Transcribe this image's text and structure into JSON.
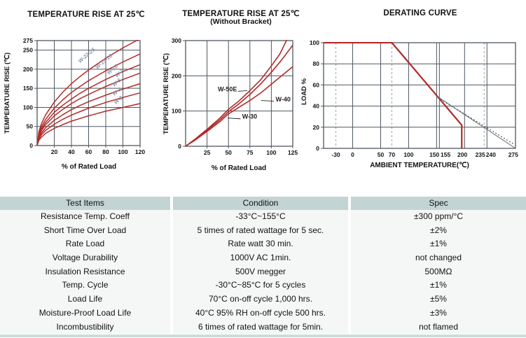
{
  "colors": {
    "curve_red": "#b22a2a",
    "grid": "#4e585f",
    "grid_dashed": "#9aa3ab",
    "derate_gray": "#5c666e",
    "derate_dotted": "#4a545c",
    "curve_label_blue": "#8393aa",
    "axis_text": "#111111",
    "table_header_bg": "#c3d4d4",
    "table_body_bg": "#f5f7f7",
    "bottom_bar": "#ccdcdc"
  },
  "chart_data": [
    {
      "type": "line",
      "title": "TEMPERATURE RISE AT 25℃",
      "subtitle": "",
      "ylabel": "TEMPERATURE RISE (℃)",
      "xlabel": "% of Rated Load",
      "xlim": [
        0,
        120
      ],
      "ylim": [
        0,
        275
      ],
      "xticks": [
        20,
        40,
        60,
        80,
        100,
        120
      ],
      "yticks": [
        0,
        50,
        100,
        150,
        200,
        250,
        275
      ],
      "series": [
        {
          "name": "W-22-25",
          "color": "curve_red",
          "width": 1.5,
          "points": [
            [
              0,
              0
            ],
            [
              2,
              36
            ],
            [
              5,
              57
            ],
            [
              10,
              81
            ],
            [
              20,
              114
            ],
            [
              30,
              140
            ],
            [
              40,
              162
            ],
            [
              50,
              181
            ],
            [
              60,
              198
            ],
            [
              80,
              229
            ],
            [
              100,
              256
            ],
            [
              120,
              280
            ]
          ],
          "label": {
            "x": 59,
            "y": 233,
            "rotate": -40
          }
        },
        {
          "name": "W-15-16",
          "color": "curve_red",
          "width": 1.5,
          "points": [
            [
              0,
              0
            ],
            [
              2,
              31
            ],
            [
              5,
              49
            ],
            [
              10,
              69
            ],
            [
              20,
              98
            ],
            [
              30,
              120
            ],
            [
              40,
              139
            ],
            [
              50,
              155
            ],
            [
              60,
              170
            ],
            [
              80,
              196
            ],
            [
              100,
              219
            ],
            [
              120,
              240
            ]
          ],
          "label": {
            "x": 79,
            "y": 217,
            "rotate": -40
          }
        },
        {
          "name": "W-10",
          "color": "curve_red",
          "width": 1.5,
          "points": [
            [
              0,
              0
            ],
            [
              2,
              27
            ],
            [
              5,
              43
            ],
            [
              10,
              61
            ],
            [
              20,
              87
            ],
            [
              30,
              106
            ],
            [
              40,
              122
            ],
            [
              50,
              137
            ],
            [
              60,
              150
            ],
            [
              80,
              173
            ],
            [
              100,
              194
            ],
            [
              120,
              212
            ]
          ],
          "label": {
            "x": 89,
            "y": 196,
            "rotate": -40
          }
        },
        {
          "name": "W-7",
          "color": "curve_red",
          "width": 1.5,
          "points": [
            [
              0,
              0
            ],
            [
              2,
              25
            ],
            [
              5,
              39
            ],
            [
              10,
              55
            ],
            [
              20,
              78
            ],
            [
              30,
              95
            ],
            [
              40,
              110
            ],
            [
              50,
              123
            ],
            [
              60,
              134
            ],
            [
              80,
              155
            ],
            [
              100,
              173
            ],
            [
              120,
              190
            ]
          ],
          "label": {
            "x": 97,
            "y": 186,
            "rotate": -40
          }
        },
        {
          "name": "W-5",
          "color": "curve_red",
          "width": 1.5,
          "points": [
            [
              0,
              0
            ],
            [
              2,
              21
            ],
            [
              5,
              33
            ],
            [
              10,
              47
            ],
            [
              20,
              66
            ],
            [
              30,
              81
            ],
            [
              40,
              94
            ],
            [
              50,
              105
            ],
            [
              60,
              115
            ],
            [
              80,
              132
            ],
            [
              100,
              148
            ],
            [
              120,
              162
            ]
          ],
          "label": {
            "x": 94,
            "y": 162,
            "rotate": -40
          }
        },
        {
          "name": "W-3",
          "color": "curve_red",
          "width": 1.5,
          "points": [
            [
              0,
              0
            ],
            [
              2,
              18
            ],
            [
              5,
              28
            ],
            [
              10,
              40
            ],
            [
              20,
              56
            ],
            [
              30,
              69
            ],
            [
              40,
              80
            ],
            [
              50,
              89
            ],
            [
              60,
              98
            ],
            [
              80,
              113
            ],
            [
              100,
              126
            ],
            [
              120,
              138
            ]
          ],
          "label": {
            "x": 94,
            "y": 138,
            "rotate": -40
          }
        },
        {
          "name": "W-2",
          "color": "curve_red",
          "width": 1.5,
          "points": [
            [
              0,
              0
            ],
            [
              2,
              14
            ],
            [
              5,
              22
            ],
            [
              10,
              32
            ],
            [
              20,
              45
            ],
            [
              30,
              55
            ],
            [
              40,
              64
            ],
            [
              50,
              71
            ],
            [
              60,
              78
            ],
            [
              80,
              90
            ],
            [
              100,
              100
            ],
            [
              120,
              110
            ]
          ],
          "label": {
            "x": 96,
            "y": 116,
            "rotate": -40
          }
        }
      ]
    },
    {
      "type": "line",
      "title": "TEMPERATURE RISE AT 25℃",
      "subtitle": "(Without Bracket)",
      "ylabel": "TEMPERATURE RISE (℃)",
      "xlabel": "% of Rated Load",
      "xlim": [
        0,
        125
      ],
      "ylim": [
        0,
        300
      ],
      "xticks": [
        25,
        50,
        75,
        100,
        125
      ],
      "yticks": [
        0,
        100,
        200,
        300
      ],
      "series": [
        {
          "name": "W-50E",
          "color": "curve_red",
          "width": 1.6,
          "points": [
            [
              0,
              0
            ],
            [
              12,
              22
            ],
            [
              25,
              48
            ],
            [
              40,
              80
            ],
            [
              50,
              105
            ],
            [
              62,
              128
            ],
            [
              75,
              158
            ],
            [
              88,
              190
            ],
            [
              100,
              228
            ],
            [
              110,
              262
            ],
            [
              118,
              302
            ]
          ],
          "label": {
            "x": 60,
            "y": 156,
            "anchor": "end",
            "leader": [
              61,
              156,
              72,
              158
            ]
          }
        },
        {
          "name": "W-40",
          "color": "curve_red",
          "width": 1.6,
          "points": [
            [
              0,
              0
            ],
            [
              12,
              20
            ],
            [
              25,
              45
            ],
            [
              40,
              75
            ],
            [
              50,
              98
            ],
            [
              62,
              120
            ],
            [
              75,
              147
            ],
            [
              88,
              178
            ],
            [
              100,
              210
            ],
            [
              112,
              245
            ],
            [
              125,
              287
            ]
          ],
          "label": {
            "x": 105,
            "y": 127,
            "anchor": "start",
            "leader": [
              103,
              128,
              88,
              130
            ]
          }
        },
        {
          "name": "W-30",
          "color": "curve_red",
          "width": 1.6,
          "points": [
            [
              0,
              0
            ],
            [
              12,
              19
            ],
            [
              25,
              42
            ],
            [
              40,
              70
            ],
            [
              50,
              92
            ],
            [
              62,
              110
            ],
            [
              75,
              130
            ],
            [
              88,
              152
            ],
            [
              100,
              176
            ],
            [
              112,
              200
            ],
            [
              125,
              226
            ]
          ],
          "label": {
            "x": 66,
            "y": 78,
            "anchor": "start",
            "leader": [
              64,
              78,
              49,
              80
            ]
          }
        }
      ]
    },
    {
      "type": "line",
      "title": "DERATING CURVE",
      "subtitle": "",
      "ylabel": "LOAD %",
      "xlabel": "AMBIENT TEMPERATURE(℃)",
      "xlim": [
        -52,
        291
      ],
      "ylim": [
        0,
        100
      ],
      "yticks": [
        0,
        20,
        40,
        60,
        80,
        100
      ],
      "vlines": [
        {
          "x": -30,
          "dashed": true
        },
        {
          "x": 0,
          "dashed": false
        },
        {
          "x": 50,
          "dashed": false
        },
        {
          "x": 70,
          "dashed": true
        },
        {
          "x": 100,
          "dashed": false
        },
        {
          "x": 150,
          "dashed": false
        },
        {
          "x": 155,
          "dashed": false
        },
        {
          "x": 200,
          "dashed": false
        },
        {
          "x": 235,
          "dashed": true
        },
        {
          "x": 240,
          "dashed": false
        }
      ],
      "xlabels": [
        {
          "t": "-30",
          "x": -30
        },
        {
          "t": "0",
          "x": 0
        },
        {
          "t": "50",
          "x": 50
        },
        {
          "t": "70",
          "x": 70
        },
        {
          "t": "100",
          "x": 100
        },
        {
          "t": "150",
          "x": 146
        },
        {
          "t": "155",
          "x": 166
        },
        {
          "t": "200",
          "x": 196
        },
        {
          "t": "235",
          "x": 228
        },
        {
          "t": "240",
          "x": 247
        },
        {
          "t": "275",
          "x": 287
        }
      ],
      "series": [
        {
          "name": "derating-load",
          "color": "curve_red",
          "width": 2.2,
          "points": [
            [
              -52,
              100
            ],
            [
              70,
              100
            ],
            [
              195,
              22
            ],
            [
              195,
              0
            ]
          ]
        },
        {
          "name": "extended-derating-solid",
          "color": "derate_gray",
          "width": 1,
          "points": [
            [
              150,
              49.5
            ],
            [
              291,
              0
            ]
          ]
        },
        {
          "name": "extended-derating-dotted",
          "color": "derate_dotted",
          "width": 1.3,
          "dash": "1.8 2.8",
          "points": [
            [
              152,
              48
            ],
            [
              288,
              4
            ]
          ]
        }
      ]
    }
  ],
  "table": {
    "headers": [
      "Test Items",
      "Condition",
      "Spec"
    ],
    "rows": [
      [
        "Resistance Temp. Coeff",
        "-33°C~155°C",
        "±300 ppm/°C"
      ],
      [
        "Short Time Over Load",
        "5 times of rated wattage for 5 sec.",
        "±2%"
      ],
      [
        "Rate Load",
        "Rate watt 30 min.",
        "±1%"
      ],
      [
        "Voltage Durability",
        "1000V AC 1min.",
        "not changed"
      ],
      [
        "Insulation Resistance",
        "500V megger",
        "500MΩ"
      ],
      [
        "Temp. Cycle",
        "-30°C~85°C for 5 cycles",
        "±1%"
      ],
      [
        "Load Life",
        "70°C on-off cycle 1,000 hrs.",
        "±5%"
      ],
      [
        "Moisture-Proof Load Life",
        "40°C 95% RH on-off cycle 500 hrs.",
        "±3%"
      ],
      [
        "Incombustibility",
        "6 times of rated wattage for 5min.",
        "not flamed"
      ]
    ]
  }
}
